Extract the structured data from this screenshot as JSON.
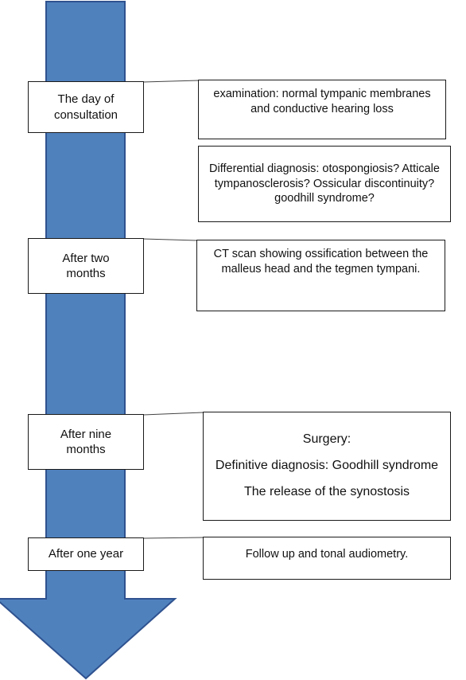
{
  "diagram": {
    "arrow_color": "#4f81bd",
    "arrow_border": "#2f528f",
    "stages": [
      {
        "id": "consultation",
        "label": "The day of consultation"
      },
      {
        "id": "two-months",
        "label": "After two months"
      },
      {
        "id": "nine-months",
        "label": "After nine months"
      },
      {
        "id": "one-year",
        "label": "After one year"
      }
    ],
    "notes": {
      "examination": "examination: normal tympanic membranes and conductive hearing loss",
      "differential": "Differential diagnosis: otospongiosis? Atticale tympanosclerosis? Ossicular discontinuity? goodhill syndrome?",
      "ct_scan": "CT scan showing ossification between the malleus head and the tegmen tympani.",
      "surgery_title": "Surgery:",
      "definitive": "Definitive diagnosis: Goodhill syndrome",
      "release": "The release of the synostosis",
      "follow_up": "Follow up and tonal audiometry."
    }
  }
}
